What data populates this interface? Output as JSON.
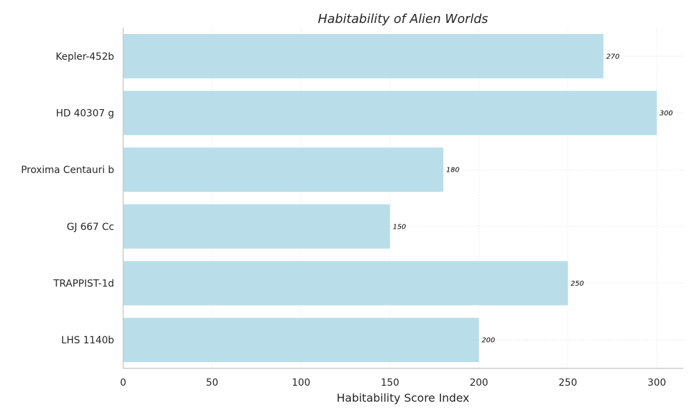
{
  "chart_data": {
    "type": "bar",
    "orientation": "horizontal",
    "title": "Habitability of Alien Worlds",
    "xlabel": "Habitability Score Index",
    "ylabel": "",
    "categories": [
      "Kepler-452b",
      "HD 40307 g",
      "Proxima Centauri b",
      "GJ 667 Cc",
      "TRAPPIST-1d",
      "LHS 1140b"
    ],
    "values": [
      270,
      300,
      180,
      150,
      250,
      200
    ],
    "data_labels": [
      "270",
      "300",
      "180",
      "150",
      "250",
      "200"
    ],
    "xlim": [
      0,
      315
    ],
    "xticks": [
      "0",
      "50",
      "100",
      "150",
      "200",
      "250",
      "300"
    ],
    "grid": true,
    "legend": "none",
    "bar_color": "#add8e6",
    "axis_color": "#cccccc"
  }
}
